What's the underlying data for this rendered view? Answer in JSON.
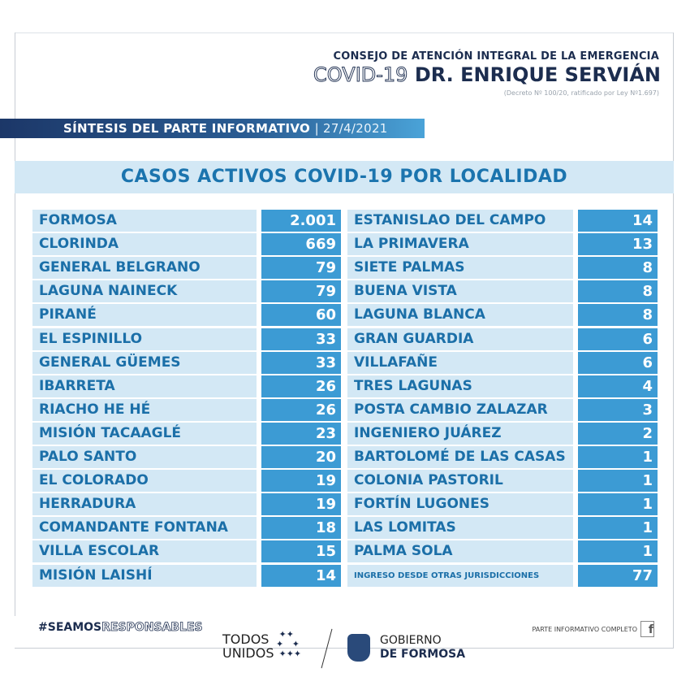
{
  "header": {
    "council": "CONSEJO DE ATENCIÓN INTEGRAL DE LA EMERGENCIA",
    "covid": "COVID-19",
    "name": "DR. ENRIQUE SERVIÁN",
    "decree": "(Decreto Nº 100/20, ratificado por Ley Nº1.697)"
  },
  "bar": {
    "label": "SÍNTESIS DEL PARTE INFORMATIVO",
    "date": "| 27/4/2021"
  },
  "title": "CASOS ACTIVOS COVID-19 POR LOCALIDAD",
  "left": [
    {
      "name": "FORMOSA",
      "value": "2.001"
    },
    {
      "name": "CLORINDA",
      "value": "669"
    },
    {
      "name": "GENERAL BELGRANO",
      "value": "79"
    },
    {
      "name": "LAGUNA NAINECK",
      "value": "79"
    },
    {
      "name": "PIRANÉ",
      "value": "60"
    },
    {
      "name": "EL ESPINILLO",
      "value": "33"
    },
    {
      "name": "GENERAL GÜEMES",
      "value": "33"
    },
    {
      "name": "IBARRETA",
      "value": "26"
    },
    {
      "name": "RIACHO HE HÉ",
      "value": "26"
    },
    {
      "name": "MISIÓN TACAAGLÉ",
      "value": "23"
    },
    {
      "name": "PALO SANTO",
      "value": "20"
    },
    {
      "name": "EL COLORADO",
      "value": "19"
    },
    {
      "name": "HERRADURA",
      "value": "19"
    },
    {
      "name": "COMANDANTE FONTANA",
      "value": "18"
    },
    {
      "name": "VILLA ESCOLAR",
      "value": "15"
    },
    {
      "name": "MISIÓN LAISHÍ",
      "value": "14"
    }
  ],
  "right": [
    {
      "name": "ESTANISLAO DEL CAMPO",
      "value": "14"
    },
    {
      "name": "LA PRIMAVERA",
      "value": "13"
    },
    {
      "name": "SIETE PALMAS",
      "value": "8"
    },
    {
      "name": "BUENA VISTA",
      "value": "8"
    },
    {
      "name": "LAGUNA BLANCA",
      "value": "8"
    },
    {
      "name": "GRAN GUARDIA",
      "value": "6"
    },
    {
      "name": "VILLAFAÑE",
      "value": "6"
    },
    {
      "name": "TRES LAGUNAS",
      "value": "4"
    },
    {
      "name": "POSTA CAMBIO ZALAZAR",
      "value": "3"
    },
    {
      "name": "INGENIERO JUÁREZ",
      "value": "2"
    },
    {
      "name": "BARTOLOMÉ DE LAS CASAS",
      "value": "1"
    },
    {
      "name": "COLONIA PASTORIL",
      "value": "1"
    },
    {
      "name": "FORTÍN LUGONES",
      "value": "1"
    },
    {
      "name": "LAS LOMITAS",
      "value": "1"
    },
    {
      "name": "PALMA SOLA",
      "value": "1"
    },
    {
      "name": "INGRESO DESDE OTRAS JURISDICCIONES",
      "value": "77"
    }
  ],
  "footer": {
    "hashtag_a": "#SEAMOS",
    "hashtag_b": "RESPONSABLES",
    "parte": "PARTE INFORMATIVO COMPLETO",
    "facebook_icon": "f",
    "todos": "TODOS",
    "unidos": "UNIDOS",
    "gob1": "GOBIERNO",
    "gob2": "DE FORMOSA"
  },
  "colors": {
    "navy": "#1c2d4f",
    "light": "#d3e8f5",
    "accent": "#3c9bd4",
    "text": "#1b6fa8"
  }
}
